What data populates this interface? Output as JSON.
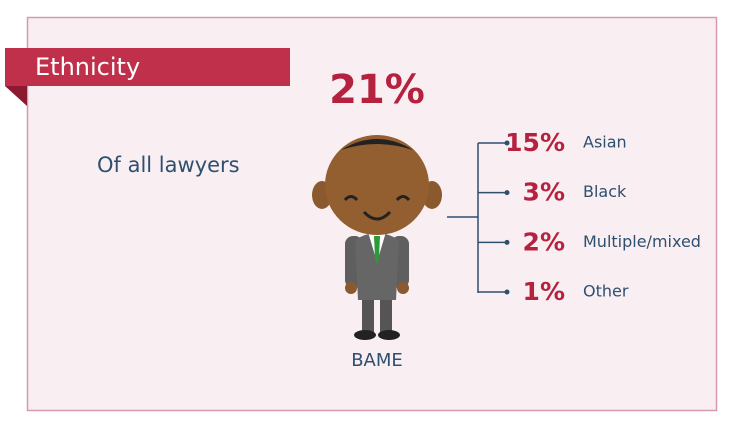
{
  "header": {
    "title": "Ethnicity"
  },
  "total": {
    "value": "21%",
    "caption": "Of all lawyers",
    "label": "BAME"
  },
  "breakdown": [
    {
      "value": "15%",
      "label": "Asian"
    },
    {
      "value": "3%",
      "label": "Black"
    },
    {
      "value": "2%",
      "label": "Multiple/mixed"
    },
    {
      "value": "1%",
      "label": "Other"
    }
  ]
}
